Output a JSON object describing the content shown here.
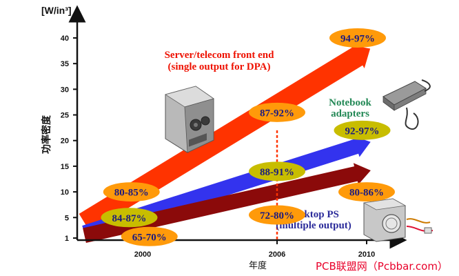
{
  "chart_data": {
    "type": "area",
    "ylabel": "[W/in³]",
    "ylabel_side": "功率密度",
    "xlabel": "年度",
    "x_ticks": [
      "2000",
      "2006",
      "2010"
    ],
    "y_ticks": [
      1,
      5,
      10,
      15,
      20,
      25,
      30,
      35,
      40
    ],
    "ylim": [
      1,
      43
    ],
    "grid": false,
    "series": [
      {
        "name": "Server/telecom front end\n(single output for DPA)",
        "label_lines": [
          "Server/telecom front end",
          "(single output for DPA)"
        ],
        "color": "#ff3300",
        "points": [
          {
            "x": 1997.4,
            "y": 4.0
          },
          {
            "x": 2000,
            "y": 10.5
          },
          {
            "x": 2006,
            "y": 25.0
          },
          {
            "x": 2010,
            "y": 37.5
          }
        ]
      },
      {
        "name": "Notebook\nadapters",
        "label_lines": [
          "Notebook",
          "adapters"
        ],
        "color": "#3333ee",
        "points": [
          {
            "x": 1997.4,
            "y": 2.0
          },
          {
            "x": 2000,
            "y": 5.0
          },
          {
            "x": 2006,
            "y": 13.0
          },
          {
            "x": 2010,
            "y": 19.5
          }
        ]
      },
      {
        "name": "Desktop PS\n(multiple output)",
        "label_lines": [
          "Desktop PS",
          "(multiple output)"
        ],
        "color": "#8b0a0a",
        "points": [
          {
            "x": 1997.4,
            "y": 1.5
          },
          {
            "x": 2000,
            "y": 2.5
          },
          {
            "x": 2006,
            "y": 8.5
          },
          {
            "x": 2010,
            "y": 14.0
          }
        ]
      }
    ],
    "annotations": [
      {
        "text": "94-97%",
        "x": 2009.6,
        "y": 40.0,
        "style": "orange"
      },
      {
        "text": "87-92%",
        "x": 2006.0,
        "y": 25.5,
        "style": "orange"
      },
      {
        "text": "80-85%",
        "x": 1999.5,
        "y": 10.0,
        "style": "orange"
      },
      {
        "text": "92-97%",
        "x": 2009.8,
        "y": 22.0,
        "style": "olive"
      },
      {
        "text": "88-91%",
        "x": 2006.0,
        "y": 14.0,
        "style": "olive"
      },
      {
        "text": "84-87%",
        "x": 1999.4,
        "y": 5.0,
        "style": "olive"
      },
      {
        "text": "80-86%",
        "x": 2010.0,
        "y": 10.0,
        "style": "orange"
      },
      {
        "text": "72-80%",
        "x": 2006.0,
        "y": 5.5,
        "style": "orange"
      },
      {
        "text": "65-70%",
        "x": 2000.3,
        "y": 1.3,
        "style": "orange"
      }
    ],
    "marker_year": 2006,
    "marker_top_y": 22.0,
    "x_domain": [
      1996.9,
      2011.0
    ],
    "colors": {
      "axis": "#111111",
      "orange_badge": "#ff9a0a",
      "olive_badge": "#c8bd00",
      "badge_text": "#1a1a80",
      "marker_line": "#ff3300",
      "server_label": "#ee1100",
      "notebook_label": "#228855",
      "desktop_label": "#2b2b9a"
    }
  },
  "watermark": "PCB联盟网（Pcbbar.com）",
  "icons": [
    "server-psu-icon",
    "notebook-adapter-icon",
    "desktop-psu-icon"
  ]
}
